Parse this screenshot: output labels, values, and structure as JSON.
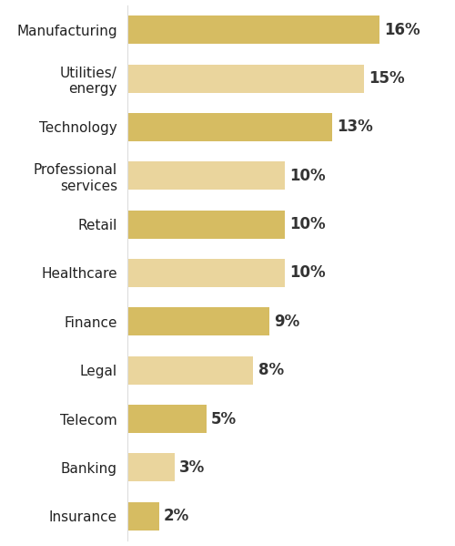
{
  "chart_data": {
    "type": "bar",
    "orientation": "horizontal",
    "categories": [
      "Manufacturing",
      "Utilities/ energy",
      "Technology",
      "Professional services",
      "Retail",
      "Healthcare",
      "Finance",
      "Legal",
      "Telecom",
      "Banking",
      "Insurance"
    ],
    "values": [
      16,
      15,
      13,
      10,
      10,
      10,
      9,
      8,
      5,
      3,
      2
    ],
    "value_labels": [
      "16%",
      "15%",
      "13%",
      "10%",
      "10%",
      "10%",
      "9%",
      "8%",
      "5%",
      "3%",
      "2%"
    ],
    "colors": [
      "#d6bc62",
      "#ead59d",
      "#d6bc62",
      "#ead59d",
      "#d6bc62",
      "#ead59d",
      "#d6bc62",
      "#ead59d",
      "#d6bc62",
      "#ead59d",
      "#d6bc62"
    ],
    "data_labels": true,
    "tick_labels": "y",
    "grid": false
  }
}
